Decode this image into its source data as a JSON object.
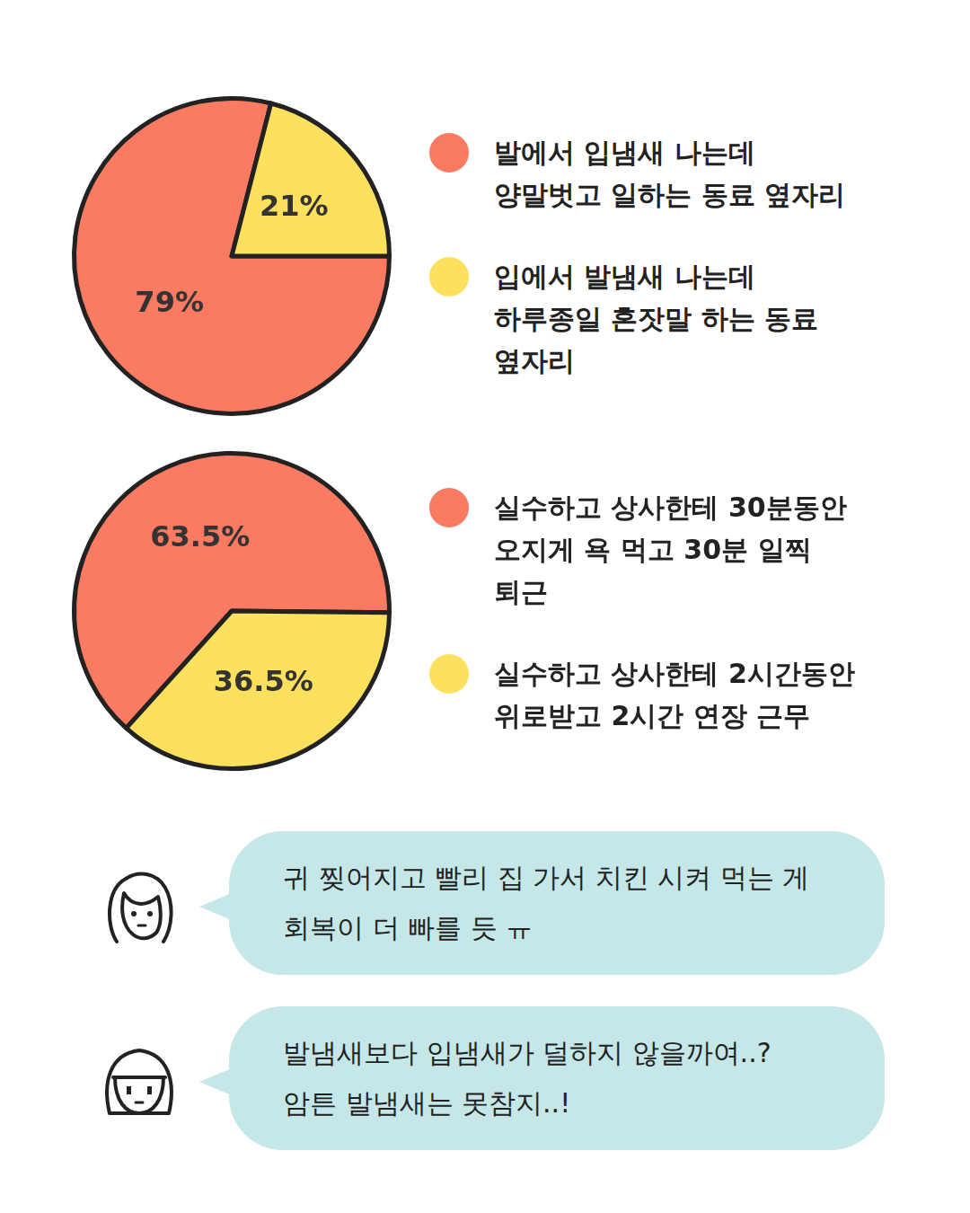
{
  "chart_data": [
    {
      "type": "pie",
      "categories": [
        "발에서 입냄새 나는데 양말벗고 일하는 동료 옆자리",
        "입에서 발냄새 나는데 하루종일 혼잣말 하는 동료 옆자리"
      ],
      "values": [
        79,
        21
      ],
      "value_labels": [
        "79%",
        "21%"
      ],
      "colors": [
        "#fa7b62",
        "#fde05e"
      ],
      "data_labels": true,
      "legend": "right"
    },
    {
      "type": "pie",
      "categories": [
        "실수하고 상사한테 30분동안 오지게 욕 먹고 30분 일찍 퇴근",
        "실수하고 상사한테 2시간동안 위로받고 2시간 연장 근무"
      ],
      "values": [
        63.5,
        36.5
      ],
      "value_labels": [
        "63.5%",
        "36.5%"
      ],
      "colors": [
        "#fa7b62",
        "#fde05e"
      ],
      "data_labels": true,
      "legend": "right"
    }
  ],
  "comments": [
    {
      "lines": [
        "귀 찢어지고 빨리 집 가서 치킨 시켜 먹는 게",
        "회복이 더 빠를 듯 ㅠ"
      ]
    },
    {
      "lines": [
        "발냄새보다 입냄새가 덜하지 않을까여..?",
        "암튼 발냄새는 못참지..!"
      ]
    }
  ]
}
